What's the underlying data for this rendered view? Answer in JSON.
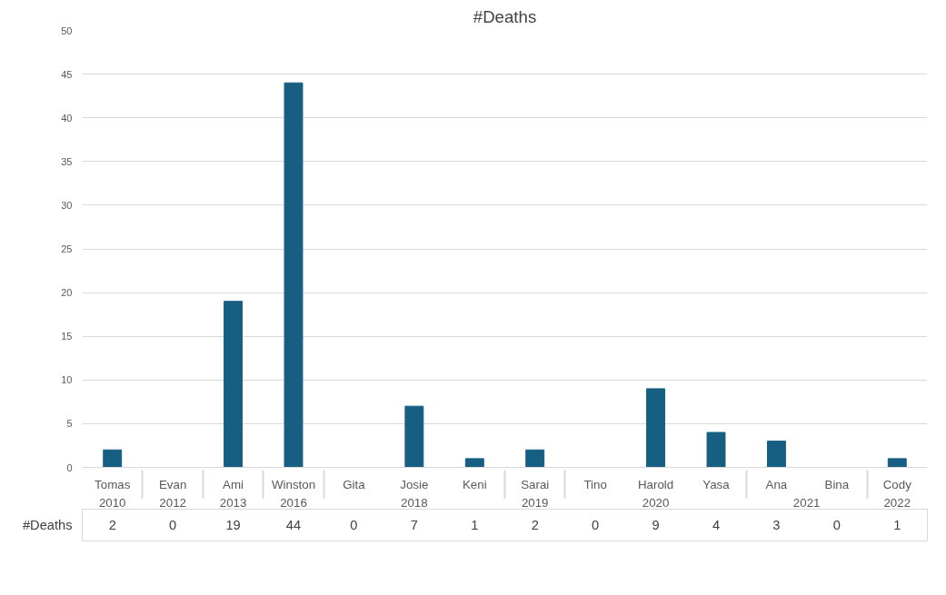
{
  "chart_data": {
    "type": "bar",
    "title": "#Deaths",
    "categories": [
      "Tomas",
      "Evan",
      "Ami",
      "Winston",
      "Gita",
      "Josie",
      "Keni",
      "Sarai",
      "Tino",
      "Harold",
      "Yasa",
      "Ana",
      "Bina",
      "Cody"
    ],
    "series": [
      {
        "name": "#Deaths",
        "color": "#175f82",
        "values": [
          2,
          0,
          19,
          44,
          0,
          7,
          1,
          2,
          0,
          9,
          4,
          3,
          0,
          1
        ]
      }
    ],
    "annotations": [
      "2010",
      "2012",
      "2013",
      "2016",
      "2018",
      "2019",
      "2020",
      "2021",
      "2022"
    ],
    "ylim": [
      0,
      50
    ],
    "yticks": [
      0,
      5,
      10,
      15,
      20,
      25,
      30,
      35,
      40,
      45,
      50
    ],
    "grid": "y",
    "data_labels": true
  }
}
